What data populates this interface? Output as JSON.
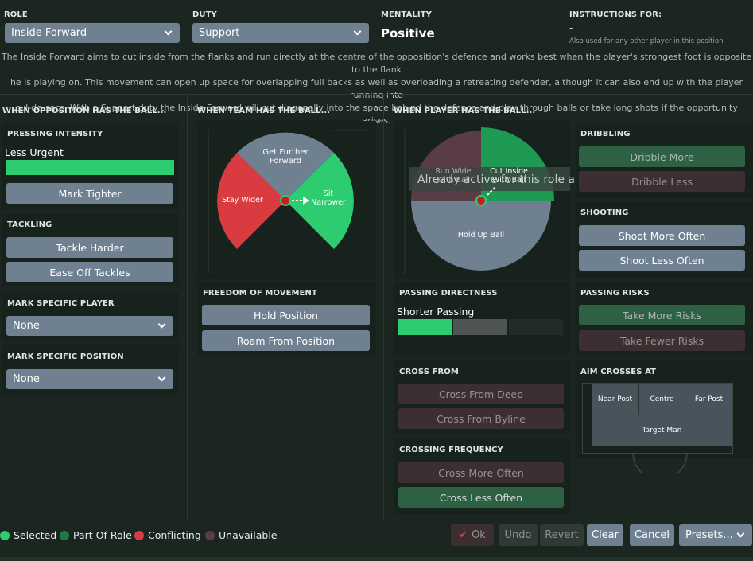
{
  "header": {
    "role_label": "ROLE",
    "role_value": "Inside Forward",
    "duty_label": "DUTY",
    "duty_value": "Support",
    "mentality_label": "MENTALITY",
    "mentality_value": "Positive",
    "instructions_label": "INSTRUCTIONS FOR:",
    "instructions_value": "-",
    "instructions_note": "Also used for any other player in this position"
  },
  "description": [
    "The Inside Forward aims to cut inside from the flanks and run directly at the centre of the opposition's defence and works best when the player's strongest foot is opposite to the flank",
    "he is playing on. This movement can open up space for overlapping full backs as well as overloading a retreating defender, although it can also end up with the player running into",
    "cul-de-sacs. With a Support duty the Inside Forward will cut diagonally into the space behind the defence and play through balls or take long shots if the opportunity arises."
  ],
  "opposition": {
    "title": "WHEN OPPOSITION HAS THE BALL...",
    "pressing_title": "PRESSING INTENSITY",
    "pressing_value": "Less Urgent",
    "pressing_level": 1.0,
    "mark_tighter": "Mark Tighter",
    "tackling_title": "TACKLING",
    "tackle_harder": "Tackle Harder",
    "ease_off": "Ease Off Tackles",
    "mark_player_title": "MARK SPECIFIC PLAYER",
    "mark_player_value": "None",
    "mark_position_title": "MARK SPECIFIC POSITION",
    "mark_position_value": "None"
  },
  "team": {
    "title": "WHEN TEAM HAS THE BALL...",
    "get_further_1": "Get Further",
    "get_further_2": "Forward",
    "stay_wider": "Stay Wider",
    "sit_1": "Sit",
    "sit_2": "Narrower",
    "freedom_title": "FREEDOM OF MOVEMENT",
    "hold_position": "Hold Position",
    "roam": "Roam From Position"
  },
  "player": {
    "title": "WHEN PLAYER HAS THE BALL...",
    "run_wide": "Run Wide",
    "with_ball": "With Ball",
    "cut_inside": "Cut Inside",
    "with_ball_2": "With Ball",
    "hold_up": "Hold Up Ball",
    "tooltip": "Already active for this role and duty",
    "passing_title": "PASSING DIRECTNESS",
    "passing_value": "Shorter Passing",
    "cross_from_title": "CROSS FROM",
    "cross_deep": "Cross From Deep",
    "cross_byline": "Cross From Byline",
    "crossing_freq_title": "CROSSING FREQUENCY",
    "cross_more": "Cross More Often",
    "cross_less": "Cross Less Often"
  },
  "right": {
    "dribbling_title": "DRIBBLING",
    "dribble_more": "Dribble More",
    "dribble_less": "Dribble Less",
    "shooting_title": "SHOOTING",
    "shoot_more": "Shoot More Often",
    "shoot_less": "Shoot Less Often",
    "risks_title": "PASSING RISKS",
    "more_risks": "Take More Risks",
    "fewer_risks": "Take Fewer Risks",
    "aim_title": "AIM CROSSES AT",
    "near_post": "Near Post",
    "centre": "Centre",
    "far_post": "Far Post",
    "target_man": "Target Man"
  },
  "legend": {
    "selected": "Selected",
    "part_of_role": "Part Of Role",
    "conflicting": "Conflicting",
    "unavailable": "Unavailable"
  },
  "footer": {
    "ok": "Ok",
    "undo": "Undo",
    "revert": "Revert",
    "clear": "Clear",
    "cancel": "Cancel",
    "presets": "Presets..."
  },
  "colors": {
    "selected": "#2ecc71",
    "part_of_role": "#1f7a45",
    "conflicting": "#d93c40",
    "unavailable": "#5a3c44",
    "button": "#6f8190"
  }
}
